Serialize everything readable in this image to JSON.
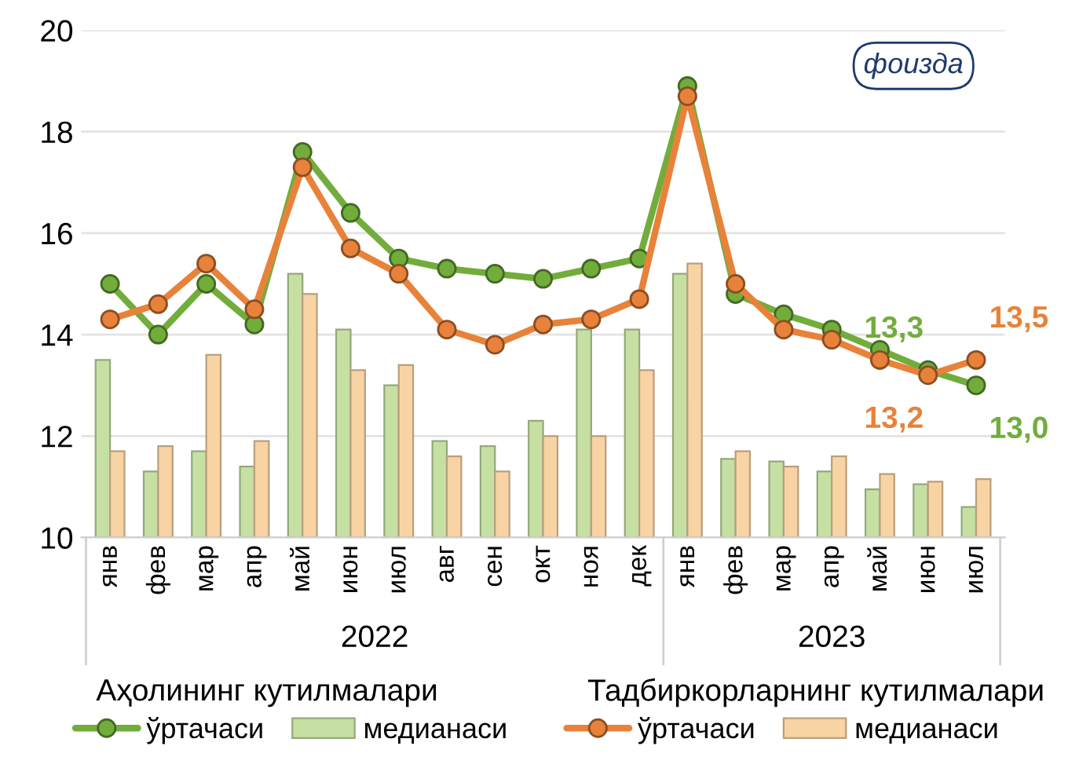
{
  "chart_data": {
    "type": "bar",
    "categories": [
      "янв",
      "фев",
      "мар",
      "апр",
      "май",
      "июн",
      "июл",
      "авг",
      "сен",
      "окт",
      "ноя",
      "дек",
      "янв",
      "фев",
      "мар",
      "апр",
      "май",
      "июн",
      "июл"
    ],
    "series": [
      {
        "name": "ўртачаси",
        "type": "line",
        "color": "#72ad3c",
        "marker": "circle",
        "values": [
          15.0,
          14.0,
          15.0,
          14.2,
          17.6,
          16.4,
          15.5,
          15.3,
          15.2,
          15.1,
          15.3,
          15.5,
          18.9,
          14.8,
          14.4,
          14.1,
          13.7,
          13.3,
          13.0
        ],
        "value_labels": [
          null,
          null,
          null,
          null,
          null,
          null,
          null,
          null,
          null,
          null,
          null,
          null,
          null,
          null,
          null,
          null,
          null,
          "13,3",
          "13,0"
        ]
      },
      {
        "name": "медианаси",
        "color": "#c6e0a4",
        "values": [
          13.5,
          11.3,
          11.7,
          11.4,
          15.2,
          14.1,
          13.0,
          11.9,
          11.8,
          12.3,
          14.1,
          14.1,
          15.2,
          11.55,
          11.5,
          11.3,
          10.95,
          11.05,
          10.6
        ]
      },
      {
        "name": "ўртачаси",
        "type": "line",
        "color": "#e8823a",
        "marker": "circle",
        "values": [
          14.3,
          14.6,
          15.4,
          14.5,
          17.3,
          15.7,
          15.2,
          14.1,
          13.8,
          14.2,
          14.3,
          14.7,
          18.7,
          15.0,
          14.1,
          13.9,
          13.5,
          13.2,
          13.5
        ],
        "value_labels": [
          null,
          null,
          null,
          null,
          null,
          null,
          null,
          null,
          null,
          null,
          null,
          null,
          null,
          null,
          null,
          null,
          null,
          "13,2",
          "13,5"
        ]
      },
      {
        "name": "медианаси",
        "color": "#f8d4a4",
        "values": [
          11.7,
          11.8,
          13.6,
          11.9,
          14.8,
          13.3,
          13.4,
          11.6,
          11.3,
          12.0,
          12.0,
          13.3,
          15.4,
          11.7,
          11.4,
          11.6,
          11.25,
          11.1,
          11.15
        ]
      }
    ],
    "ylim": [
      10,
      20
    ],
    "yticks": [
      10,
      12,
      14,
      16,
      18,
      20
    ],
    "grid": "y",
    "legend": "bottom",
    "annotations": [
      "фоизда",
      "2022",
      "2023",
      "Аҳолининг кутилмалари",
      "Тадбиркорларнинг кутилмалари"
    ]
  }
}
